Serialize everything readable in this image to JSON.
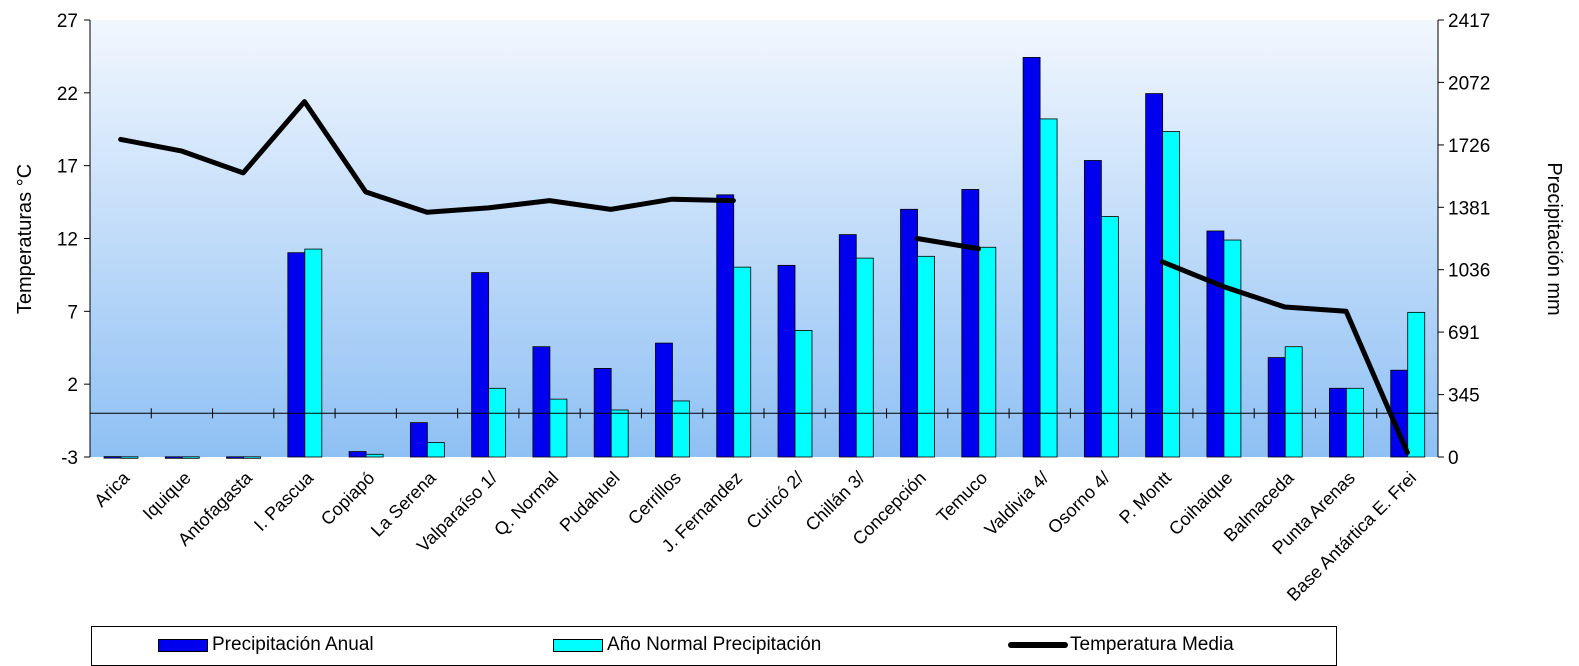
{
  "chart_data": {
    "type": "bar",
    "categories": [
      "Arica",
      "Iquique",
      "Antofagasta",
      "I. Pascua",
      "Copiapó",
      "La Serena",
      "Valparaíso 1/",
      "Q. Normal",
      "Pudahuel",
      "Cerrillos",
      "J. Fernandez",
      "Curicó 2/",
      "Chillán 3/",
      "Concepción",
      "Temuco",
      "Valdivia 4/",
      "Osorno 4/",
      "P. Montt",
      "Coihaique",
      "Balmaceda",
      "Punta Arenas",
      "Base Antártica E. Frei"
    ],
    "series": [
      {
        "name": "Precipitación Anual",
        "type": "bar",
        "axis": "right",
        "color": "#0000ee",
        "values": [
          2,
          1,
          1,
          1130,
          30,
          190,
          1020,
          610,
          490,
          630,
          1450,
          1060,
          1230,
          1370,
          1480,
          2210,
          1640,
          2010,
          1250,
          550,
          380,
          480
        ]
      },
      {
        "name": "Año Normal Precipitación",
        "type": "bar",
        "axis": "right",
        "color": "#00ffff",
        "values": [
          1,
          1,
          1,
          1150,
          15,
          80,
          380,
          320,
          260,
          310,
          1050,
          700,
          1100,
          1110,
          1160,
          1870,
          1330,
          1800,
          1200,
          610,
          380,
          800
        ]
      },
      {
        "name": "Temperatura Media",
        "type": "line",
        "axis": "left",
        "color": "#000000",
        "values": [
          18.8,
          18.0,
          16.5,
          21.4,
          15.2,
          13.8,
          14.1,
          14.6,
          14.0,
          14.7,
          14.6,
          null,
          null,
          12.0,
          11.3,
          null,
          null,
          10.4,
          8.7,
          7.3,
          7.0,
          -2.7
        ]
      }
    ],
    "ylabel": "Temperaturas °C",
    "y2label": "Precipitación mm",
    "ylim": [
      -3,
      27
    ],
    "y2lim": [
      0,
      2417
    ],
    "yticks": [
      "27",
      "22",
      "17",
      "12",
      "7",
      "2",
      "-3"
    ],
    "y2ticks": [
      "2417",
      "2072",
      "1726",
      "1381",
      "1036",
      "691",
      "345",
      "0"
    ],
    "grid": false,
    "zero_line": 0,
    "legend_position": "bottom",
    "background": "light-blue-gradient"
  }
}
